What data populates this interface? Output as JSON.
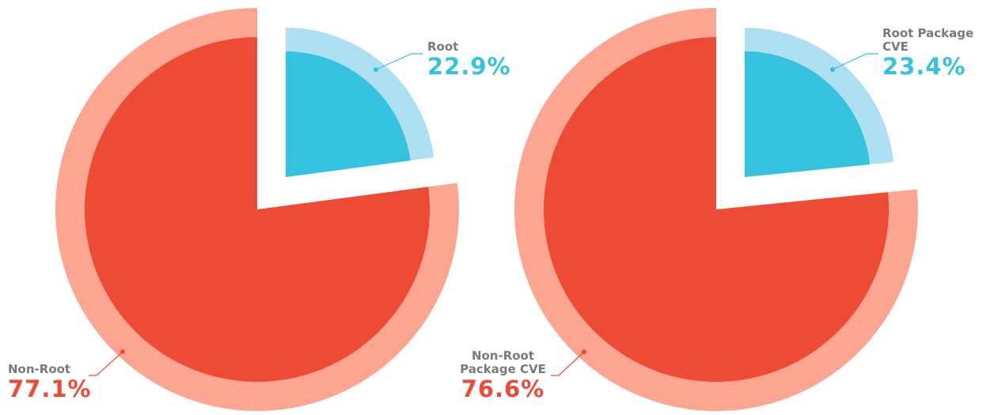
{
  "chart_data": [
    {
      "type": "pie",
      "categories": [
        "Root",
        "Non-Root"
      ],
      "values": [
        22.9,
        77.1
      ],
      "value_labels": [
        "22.9%",
        "77.1%"
      ],
      "colors": [
        "#35c2e0",
        "#ee4b36"
      ],
      "ring_colors": [
        "#aee0f2",
        "#fca692"
      ],
      "explode": [
        true,
        false
      ]
    },
    {
      "type": "pie",
      "categories": [
        "Root Package CVE",
        "Non-Root Package CVE"
      ],
      "values": [
        23.4,
        76.6
      ],
      "value_labels": [
        "23.4%",
        "76.6%"
      ],
      "colors": [
        "#35c2e0",
        "#ee4b36"
      ],
      "ring_colors": [
        "#aee0f2",
        "#fca692"
      ],
      "explode": [
        true,
        false
      ]
    }
  ]
}
